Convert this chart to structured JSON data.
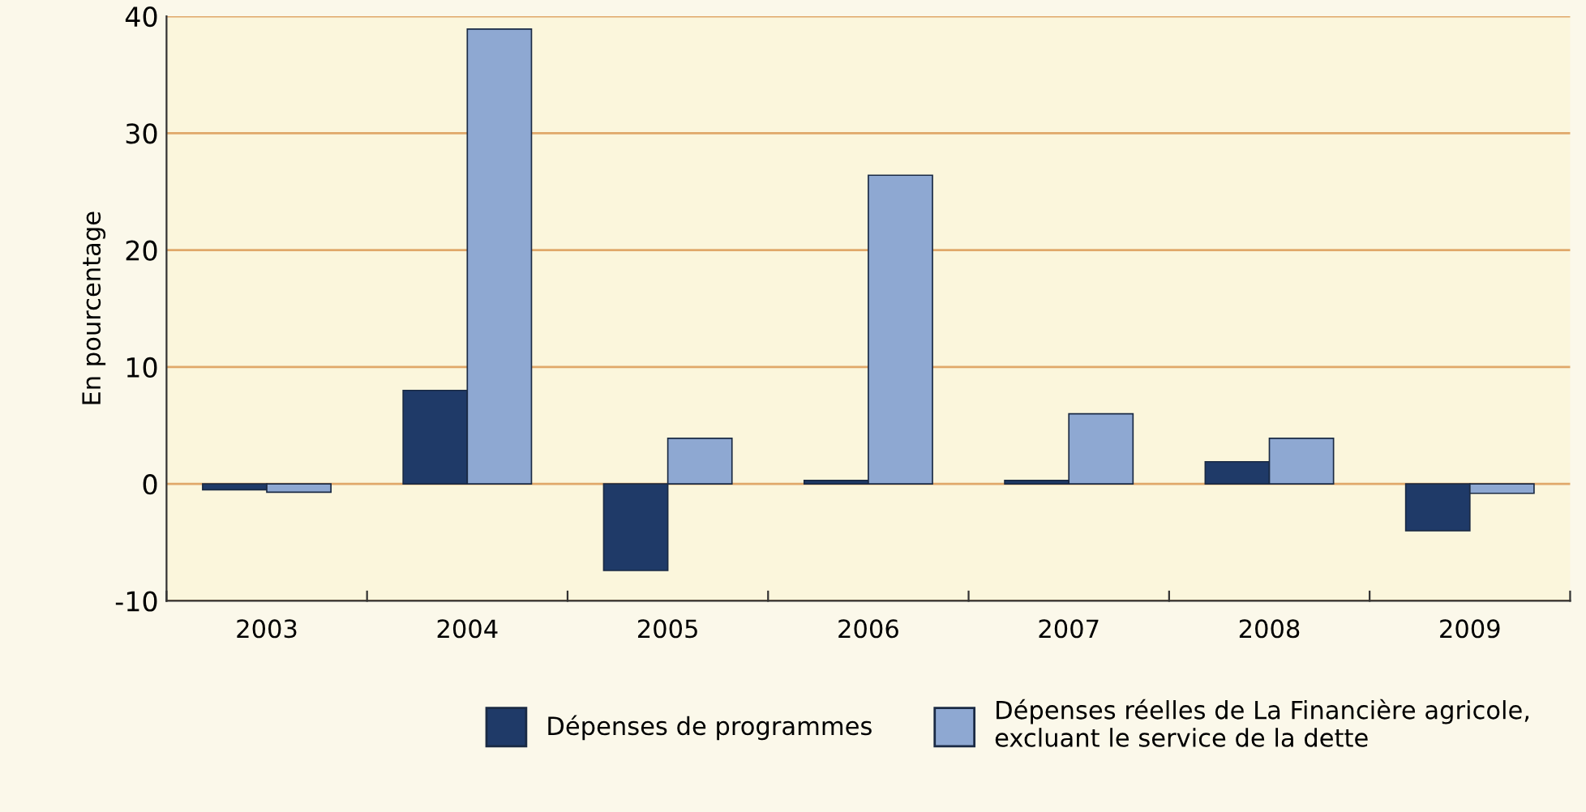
{
  "chart_data": {
    "type": "bar",
    "ylabel": "En pourcentage",
    "categories": [
      "2003",
      "2004",
      "2005",
      "2006",
      "2007",
      "2008",
      "2009"
    ],
    "series": [
      {
        "name": "Dépenses de programmes",
        "color": "#1f3a68",
        "values": [
          -0.5,
          8,
          -7.4,
          0.3,
          0.3,
          1.9,
          -4
        ]
      },
      {
        "name": "Dépenses réelles de La Financière agricole,\nexcluant le service de la dette",
        "color": "#8ea8d2",
        "values": [
          -0.7,
          38.9,
          3.9,
          26.4,
          6,
          3.9,
          -0.8
        ]
      }
    ],
    "ylim": [
      -10,
      40
    ],
    "yticks": [
      -10,
      0,
      10,
      20,
      30,
      40
    ],
    "grid": "y",
    "legend": "bottom"
  }
}
